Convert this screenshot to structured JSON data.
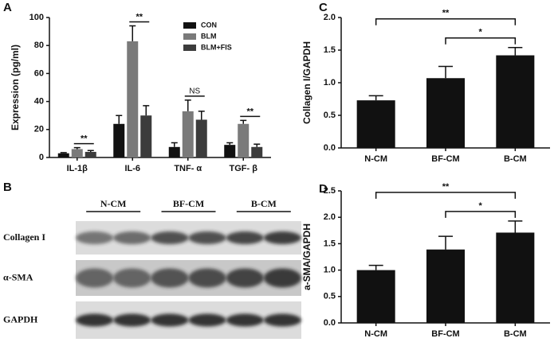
{
  "chart_data": [
    {
      "type": "bar",
      "panel": "A",
      "ylabel": "Expression (pg/ml)",
      "categories": [
        "IL-1β",
        "IL-6",
        "TNF- α",
        "TGF- β"
      ],
      "series": [
        {
          "name": "CON",
          "color": "#111111",
          "values": [
            3,
            24,
            7.5,
            9
          ],
          "errors": [
            0.5,
            6,
            3,
            1.5
          ]
        },
        {
          "name": "BLM",
          "color": "#7a7a7a",
          "values": [
            6,
            83,
            33,
            24
          ],
          "errors": [
            1,
            11,
            8,
            2.5
          ]
        },
        {
          "name": "BLM+FIS",
          "color": "#3c3c3c",
          "values": [
            4,
            30,
            27,
            7.5
          ],
          "errors": [
            1,
            7,
            6,
            2
          ]
        }
      ],
      "significance": [
        "**",
        "**",
        "NS",
        "**"
      ],
      "ylim": [
        0,
        100
      ],
      "yticks": [
        0,
        20,
        40,
        60,
        80,
        100
      ]
    },
    {
      "type": "bar",
      "panel": "C",
      "ylabel": "Collagen I/GAPDH",
      "categories": [
        "N-CM",
        "BF-CM",
        "B-CM"
      ],
      "values": [
        0.73,
        1.07,
        1.42
      ],
      "errors": [
        0.07,
        0.18,
        0.12
      ],
      "color": "#111111",
      "comparisons": [
        {
          "label": "**",
          "between": [
            "N-CM",
            "B-CM"
          ]
        },
        {
          "label": "*",
          "between": [
            "BF-CM",
            "B-CM"
          ]
        }
      ],
      "ylim": [
        0,
        2
      ],
      "yticks": [
        {
          "value": 0,
          "label": "0.0"
        },
        {
          "value": 0.5,
          "label": "0.5"
        },
        {
          "value": 1,
          "label": "1.0"
        },
        {
          "value": 1.5,
          "label": "1.5"
        },
        {
          "value": 2,
          "label": "2.0"
        }
      ]
    },
    {
      "type": "bar",
      "panel": "D",
      "ylabel": "a-SMA/GAPDH",
      "categories": [
        "N-CM",
        "BF-CM",
        "B-CM"
      ],
      "values": [
        1.0,
        1.39,
        1.71
      ],
      "errors": [
        0.09,
        0.25,
        0.22
      ],
      "color": "#111111",
      "comparisons": [
        {
          "label": "**",
          "between": [
            "N-CM",
            "B-CM"
          ]
        },
        {
          "label": "*",
          "between": [
            "BF-CM",
            "B-CM"
          ]
        }
      ],
      "ylim": [
        0,
        2.5
      ],
      "yticks": [
        {
          "value": 0,
          "label": "0.0"
        },
        {
          "value": 0.5,
          "label": "0.5"
        },
        {
          "value": 1,
          "label": "1.0"
        },
        {
          "value": 1.5,
          "label": "1.5"
        },
        {
          "value": 2,
          "label": "2.0"
        },
        {
          "value": 2.5,
          "label": "2.5"
        }
      ]
    }
  ],
  "blot": {
    "panel": "B",
    "groups": [
      "N-CM",
      "BF-CM",
      "B-CM"
    ],
    "rows": [
      "Collagen I",
      "α-SMA",
      "GAPDH"
    ]
  }
}
